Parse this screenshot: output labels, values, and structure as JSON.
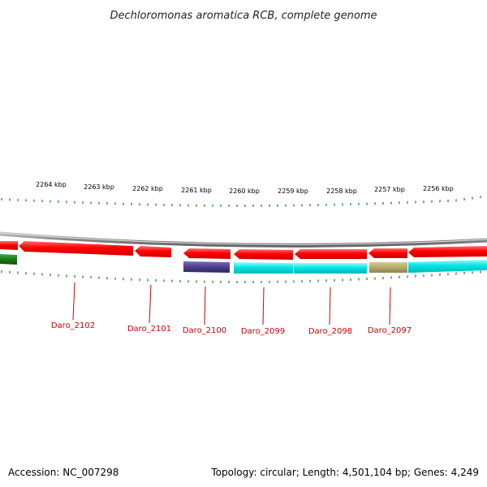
{
  "title": "Dechloromonas aromatica RCB, complete genome",
  "accession_label": "Accession: NC_007298",
  "summary_label": "Topology: circular; Length: 4,501,104 bp; Genes: 4,249",
  "scale_labels": [
    "2264 kbp",
    "2263 kbp",
    "2262 kbp",
    "2261 kbp",
    "2260 kbp",
    "2259 kbp",
    "2258 kbp",
    "2257 kbp",
    "2256 kbp"
  ],
  "gene_labels": [
    "Daro_2102",
    "Daro_2101",
    "Daro_2100",
    "Daro_2099",
    "Daro_2098",
    "Daro_2097"
  ],
  "colors": {
    "forward_gene": "#ff0000",
    "reverse_gene": "#00e5e5",
    "purple_gene": "#4b3f8a",
    "olive_gene": "#b5a96a",
    "green_gene": "#1a7a1a",
    "backbone": "#888888",
    "tick": "#1a7a1a",
    "gene_label": "#cc0000"
  }
}
